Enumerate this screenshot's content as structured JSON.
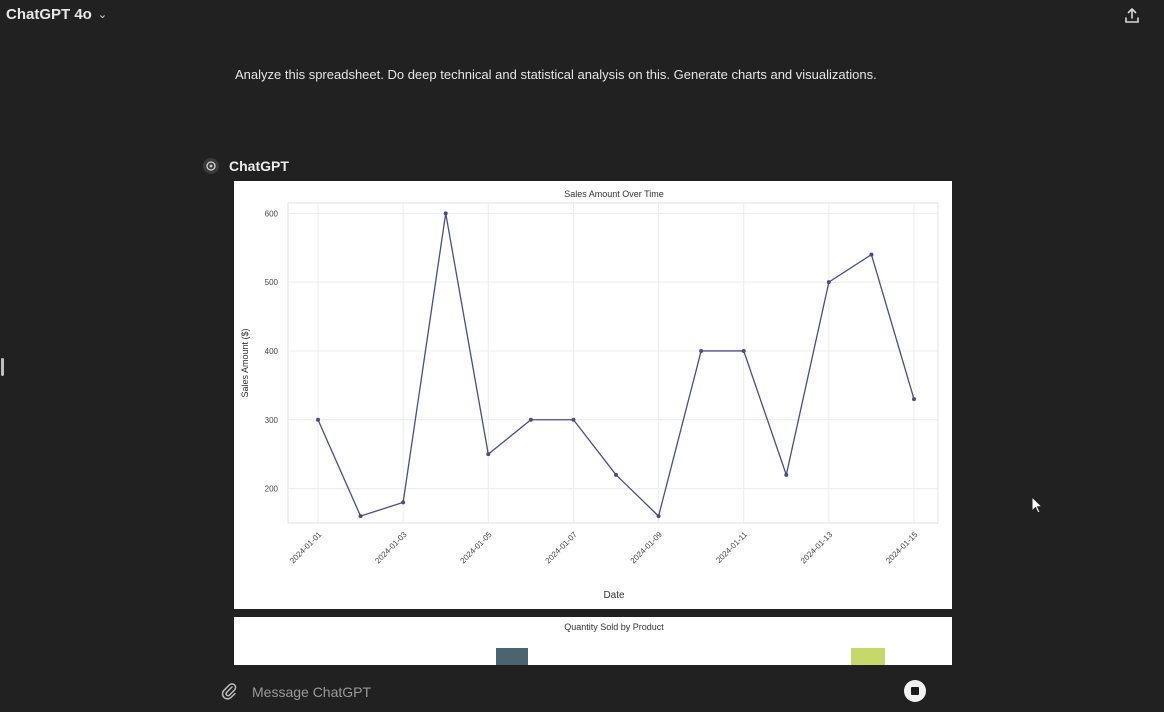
{
  "header": {
    "model_label": "ChatGPT 4o",
    "model_chevron_icon": "chevron-down-icon",
    "share_icon": "share-icon"
  },
  "conversation": {
    "user_message": "Analyze this spreadsheet. Do deep technical and statistical analysis on this. Generate charts and visualizations.",
    "assistant_name": "ChatGPT",
    "assistant_icon": "openai-logo-icon"
  },
  "chart_data": [
    {
      "type": "line",
      "title": "Sales Amount Over Time",
      "xlabel": "Date",
      "ylabel": "Sales Amount ($)",
      "x": [
        "2024-01-01",
        "2024-01-02",
        "2024-01-03",
        "2024-01-04",
        "2024-01-05",
        "2024-01-06",
        "2024-01-07",
        "2024-01-08",
        "2024-01-09",
        "2024-01-10",
        "2024-01-11",
        "2024-01-12",
        "2024-01-13",
        "2024-01-14",
        "2024-01-15"
      ],
      "values": [
        300,
        160,
        180,
        600,
        250,
        300,
        300,
        220,
        160,
        400,
        400,
        220,
        500,
        540,
        330
      ],
      "xticks": [
        "2024-01-01",
        "2024-01-03",
        "2024-01-05",
        "2024-01-07",
        "2024-01-09",
        "2024-01-11",
        "2024-01-13",
        "2024-01-15"
      ],
      "yticks": [
        200,
        300,
        400,
        500,
        600
      ],
      "ylim": [
        150,
        615
      ],
      "grid": true,
      "color": "#4b4b8a"
    },
    {
      "type": "bar",
      "title": "Quantity Sold by Product",
      "colors": [
        "#4a6470",
        "#c4d96a"
      ]
    }
  ],
  "composer": {
    "placeholder": "Message ChatGPT",
    "attach_icon": "paperclip-icon",
    "stop_icon": "stop-icon"
  },
  "colors": {
    "background": "#212121",
    "text": "#ececec",
    "chart_background": "#ffffff"
  }
}
